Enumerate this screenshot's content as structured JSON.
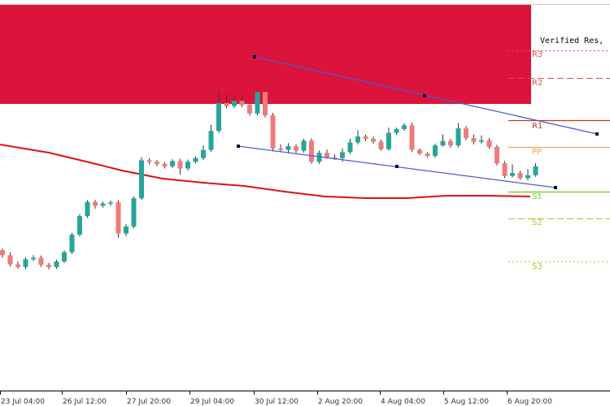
{
  "colors": {
    "background": "#ffffff",
    "bull_candle": "#26a69a",
    "bear_candle": "#ef7b7b",
    "zone": "#dc143c",
    "moving_average": "#e01010",
    "trendline": "#4b5bd0",
    "anchor": "#0a0a3a",
    "r3": "#e05050",
    "r2": "#e05050",
    "r1": "#c0392b",
    "pp": "#f4a460",
    "s1": "#7ad32a",
    "s2": "#9acd32",
    "s3": "#9acd32"
  },
  "chart_data": {
    "type": "candlestick",
    "x_labels": [
      "23 Jul 04:00",
      "26 Jul 12:00",
      "27 Jul 20:00",
      "29 Jul 04:00",
      "30 Jul 12:00",
      "2 Aug 20:00",
      "4 Aug 04:00",
      "5 Aug 12:00",
      "6 Aug 20:00"
    ],
    "zone": {
      "label": "Verified Res,"
    },
    "pivots": [
      {
        "key": "r3",
        "label": "R3"
      },
      {
        "key": "r2",
        "label": "R2"
      },
      {
        "key": "r1",
        "label": "R1"
      },
      {
        "key": "pp",
        "label": "PP"
      },
      {
        "key": "s1",
        "label": "S1"
      },
      {
        "key": "s2",
        "label": "S2"
      },
      {
        "key": "s3",
        "label": "S3"
      }
    ],
    "candles": [
      [
        0.34,
        0.327,
        0.345,
        0.32
      ],
      [
        0.327,
        0.302,
        0.335,
        0.296
      ],
      [
        0.302,
        0.295,
        0.31,
        0.29
      ],
      [
        0.295,
        0.316,
        0.321,
        0.289
      ],
      [
        0.316,
        0.32,
        0.327,
        0.311
      ],
      [
        0.32,
        0.301,
        0.326,
        0.295
      ],
      [
        0.301,
        0.295,
        0.306,
        0.289
      ],
      [
        0.295,
        0.31,
        0.315,
        0.29
      ],
      [
        0.31,
        0.335,
        0.34,
        0.306
      ],
      [
        0.335,
        0.382,
        0.387,
        0.33
      ],
      [
        0.382,
        0.432,
        0.437,
        0.377
      ],
      [
        0.432,
        0.47,
        0.475,
        0.427
      ],
      [
        0.47,
        0.46,
        0.476,
        0.452
      ],
      [
        0.46,
        0.466,
        0.471,
        0.455
      ],
      [
        0.466,
        0.469,
        0.474,
        0.46
      ],
      [
        0.469,
        0.385,
        0.475,
        0.374
      ],
      [
        0.385,
        0.404,
        0.41,
        0.378
      ],
      [
        0.404,
        0.48,
        0.485,
        0.399
      ],
      [
        0.48,
        0.582,
        0.59,
        0.475
      ],
      [
        0.582,
        0.578,
        0.588,
        0.571
      ],
      [
        0.578,
        0.572,
        0.583,
        0.566
      ],
      [
        0.572,
        0.566,
        0.577,
        0.56
      ],
      [
        0.566,
        0.58,
        0.585,
        0.561
      ],
      [
        0.58,
        0.56,
        0.586,
        0.544
      ],
      [
        0.56,
        0.578,
        0.584,
        0.554
      ],
      [
        0.578,
        0.588,
        0.593,
        0.574
      ],
      [
        0.588,
        0.61,
        0.622,
        0.583
      ],
      [
        0.61,
        0.661,
        0.678,
        0.605
      ],
      [
        0.661,
        0.736,
        0.77,
        0.656
      ],
      [
        0.736,
        0.728,
        0.76,
        0.722
      ],
      [
        0.728,
        0.742,
        0.756,
        0.723
      ],
      [
        0.742,
        0.731,
        0.754,
        0.725
      ],
      [
        0.731,
        0.708,
        0.736,
        0.702
      ],
      [
        0.708,
        0.766,
        0.77,
        0.703
      ],
      [
        0.766,
        0.703,
        0.772,
        0.697
      ],
      [
        0.703,
        0.614,
        0.71,
        0.606
      ],
      [
        0.614,
        0.61,
        0.625,
        0.604
      ],
      [
        0.61,
        0.62,
        0.628,
        0.601
      ],
      [
        0.62,
        0.608,
        0.625,
        0.602
      ],
      [
        0.608,
        0.635,
        0.64,
        0.603
      ],
      [
        0.635,
        0.578,
        0.641,
        0.573
      ],
      [
        0.578,
        0.602,
        0.608,
        0.573
      ],
      [
        0.602,
        0.59,
        0.611,
        0.586
      ],
      [
        0.59,
        0.588,
        0.598,
        0.583
      ],
      [
        0.588,
        0.604,
        0.614,
        0.578
      ],
      [
        0.604,
        0.63,
        0.64,
        0.599
      ],
      [
        0.63,
        0.646,
        0.663,
        0.625
      ],
      [
        0.646,
        0.64,
        0.651,
        0.634
      ],
      [
        0.64,
        0.632,
        0.646,
        0.626
      ],
      [
        0.632,
        0.612,
        0.638,
        0.608
      ],
      [
        0.612,
        0.656,
        0.67,
        0.608
      ],
      [
        0.656,
        0.666,
        0.67,
        0.65
      ],
      [
        0.666,
        0.676,
        0.682,
        0.661
      ],
      [
        0.676,
        0.61,
        0.683,
        0.604
      ],
      [
        0.61,
        0.6,
        0.614,
        0.596
      ],
      [
        0.6,
        0.594,
        0.604,
        0.59
      ],
      [
        0.594,
        0.622,
        0.627,
        0.589
      ],
      [
        0.622,
        0.634,
        0.652,
        0.619
      ],
      [
        0.634,
        0.622,
        0.64,
        0.616
      ],
      [
        0.622,
        0.668,
        0.682,
        0.617
      ],
      [
        0.668,
        0.642,
        0.674,
        0.636
      ],
      [
        0.642,
        0.632,
        0.651,
        0.625
      ],
      [
        0.632,
        0.636,
        0.649,
        0.627
      ],
      [
        0.636,
        0.618,
        0.642,
        0.613
      ],
      [
        0.618,
        0.574,
        0.624,
        0.568
      ],
      [
        0.574,
        0.54,
        0.58,
        0.534
      ],
      [
        0.54,
        0.548,
        0.571,
        0.536
      ],
      [
        0.548,
        0.534,
        0.554,
        0.53
      ],
      [
        0.534,
        0.542,
        0.558,
        0.528
      ],
      [
        0.542,
        0.566,
        0.574,
        0.538
      ]
    ]
  }
}
